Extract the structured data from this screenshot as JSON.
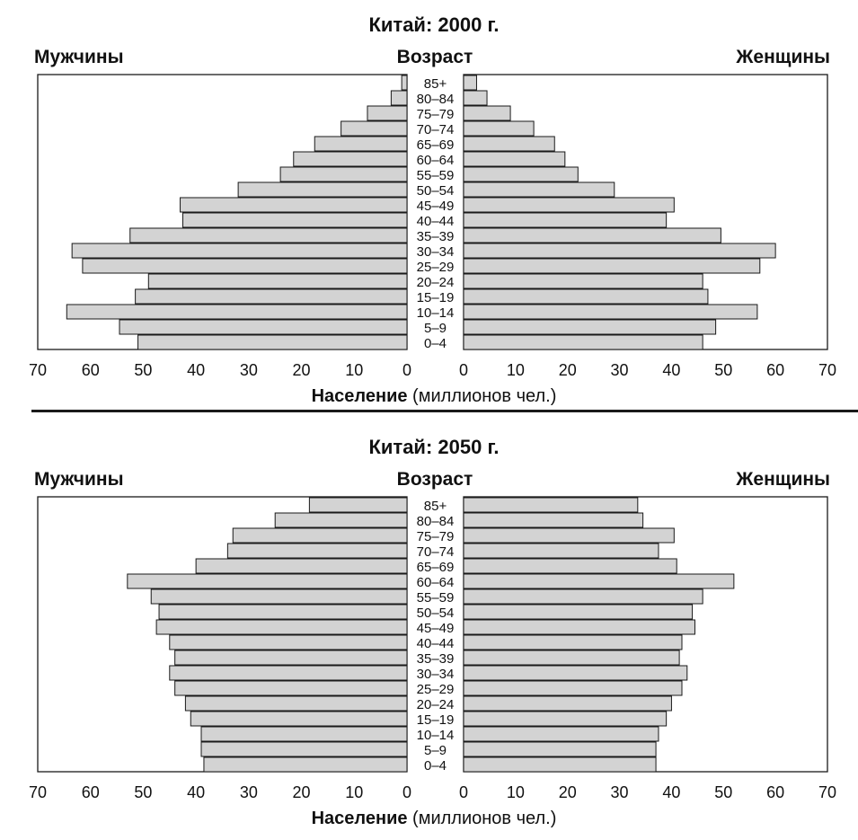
{
  "chart_data": [
    {
      "type": "bar",
      "title": "Китай: 2000 г.",
      "left_label": "Мужчины",
      "center_label": "Возраст",
      "right_label": "Женщины",
      "xlabel_bold": "Население",
      "xlabel_rest": "(миллионов чел.)",
      "xlim": [
        0,
        70
      ],
      "x_ticks": [
        0,
        10,
        20,
        30,
        40,
        50,
        60,
        70
      ],
      "categories": [
        "85+",
        "80–84",
        "75–79",
        "70–74",
        "65–69",
        "60–64",
        "55–59",
        "50–54",
        "45–49",
        "40–44",
        "35–39",
        "30–34",
        "25–29",
        "20–24",
        "15–19",
        "10–14",
        "5–9",
        "0–4"
      ],
      "series": [
        {
          "name": "Мужчины",
          "values": [
            1,
            3,
            7.5,
            12.5,
            17.5,
            21.5,
            24,
            32,
            43,
            42.5,
            52.5,
            63.5,
            61.5,
            49,
            51.5,
            64.5,
            54.5,
            51
          ]
        },
        {
          "name": "Женщины",
          "values": [
            2.5,
            4.5,
            9,
            13.5,
            17.5,
            19.5,
            22,
            29,
            40.5,
            39,
            49.5,
            60,
            57,
            46,
            47,
            56.5,
            48.5,
            46
          ]
        }
      ]
    },
    {
      "type": "bar",
      "title": "Китай: 2050 г.",
      "left_label": "Мужчины",
      "center_label": "Возраст",
      "right_label": "Женщины",
      "xlabel_bold": "Население",
      "xlabel_rest": "(миллионов чел.)",
      "xlim": [
        0,
        70
      ],
      "x_ticks": [
        0,
        10,
        20,
        30,
        40,
        50,
        60,
        70
      ],
      "categories": [
        "85+",
        "80–84",
        "75–79",
        "70–74",
        "65–69",
        "60–64",
        "55–59",
        "50–54",
        "45–49",
        "40–44",
        "35–39",
        "30–34",
        "25–29",
        "20–24",
        "15–19",
        "10–14",
        "5–9",
        "0–4"
      ],
      "series": [
        {
          "name": "Мужчины",
          "values": [
            18.5,
            25,
            33,
            34,
            40,
            53,
            48.5,
            47,
            47.5,
            45,
            44,
            45,
            44,
            42,
            41,
            39,
            39,
            38.5
          ]
        },
        {
          "name": "Женщины",
          "values": [
            33.5,
            34.5,
            40.5,
            37.5,
            41,
            52,
            46,
            44,
            44.5,
            42,
            41.5,
            43,
            42,
            40,
            39,
            37.5,
            37,
            37
          ]
        }
      ]
    }
  ],
  "colors": {
    "bar_fill": "#d3d3d3",
    "bar_stroke": "#1a1a1a",
    "text": "#111111",
    "background": "#ffffff"
  }
}
